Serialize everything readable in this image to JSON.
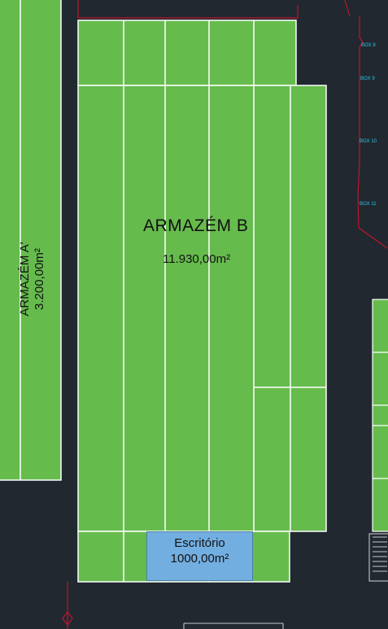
{
  "warehouse_b": {
    "name": "ARMAZÉM  B",
    "area": "11.930,00m²"
  },
  "warehouse_a": {
    "name": "ARMAZÉM A'",
    "area": "3.200,00m²"
  },
  "office": {
    "name": "Escritório",
    "area": "1000,00m²"
  },
  "boxes": [
    "BOX 8",
    "BOX 9",
    "BOX 10",
    "BOX 11"
  ],
  "colors": {
    "background": "#212830",
    "warehouse_fill": "#66bb4d",
    "office_fill": "#73aee0",
    "boundary": "#c0162b",
    "box_label": "#28c8e6"
  }
}
